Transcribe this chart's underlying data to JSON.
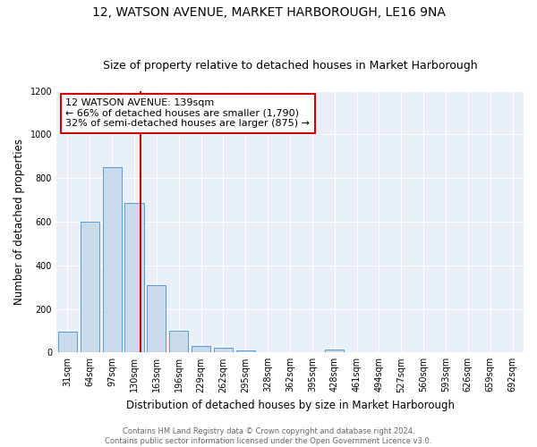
{
  "title": "12, WATSON AVENUE, MARKET HARBOROUGH, LE16 9NA",
  "subtitle": "Size of property relative to detached houses in Market Harborough",
  "xlabel": "Distribution of detached houses by size in Market Harborough",
  "ylabel": "Number of detached properties",
  "bins": [
    "31sqm",
    "64sqm",
    "97sqm",
    "130sqm",
    "163sqm",
    "196sqm",
    "229sqm",
    "262sqm",
    "295sqm",
    "328sqm",
    "362sqm",
    "395sqm",
    "428sqm",
    "461sqm",
    "494sqm",
    "527sqm",
    "560sqm",
    "593sqm",
    "626sqm",
    "659sqm",
    "692sqm"
  ],
  "values": [
    95,
    600,
    850,
    685,
    310,
    100,
    30,
    22,
    10,
    0,
    0,
    0,
    12,
    0,
    0,
    0,
    0,
    0,
    0,
    0,
    0
  ],
  "bar_color": "#c9daea",
  "bar_edge_color": "#5b9bd5",
  "vline_color": "#cc0000",
  "annotation_text": "12 WATSON AVENUE: 139sqm\n← 66% of detached houses are smaller (1,790)\n32% of semi-detached houses are larger (875) →",
  "annotation_box_color": "white",
  "annotation_box_edge_color": "#cc0000",
  "ylim": [
    0,
    1200
  ],
  "yticks": [
    0,
    200,
    400,
    600,
    800,
    1000,
    1200
  ],
  "background_color": "#eaf0f8",
  "footer_text": "Contains HM Land Registry data © Crown copyright and database right 2024.\nContains public sector information licensed under the Open Government Licence v3.0.",
  "title_fontsize": 10,
  "subtitle_fontsize": 9,
  "xlabel_fontsize": 8.5,
  "ylabel_fontsize": 8.5,
  "tick_fontsize": 7,
  "annotation_fontsize": 8,
  "footer_fontsize": 6
}
